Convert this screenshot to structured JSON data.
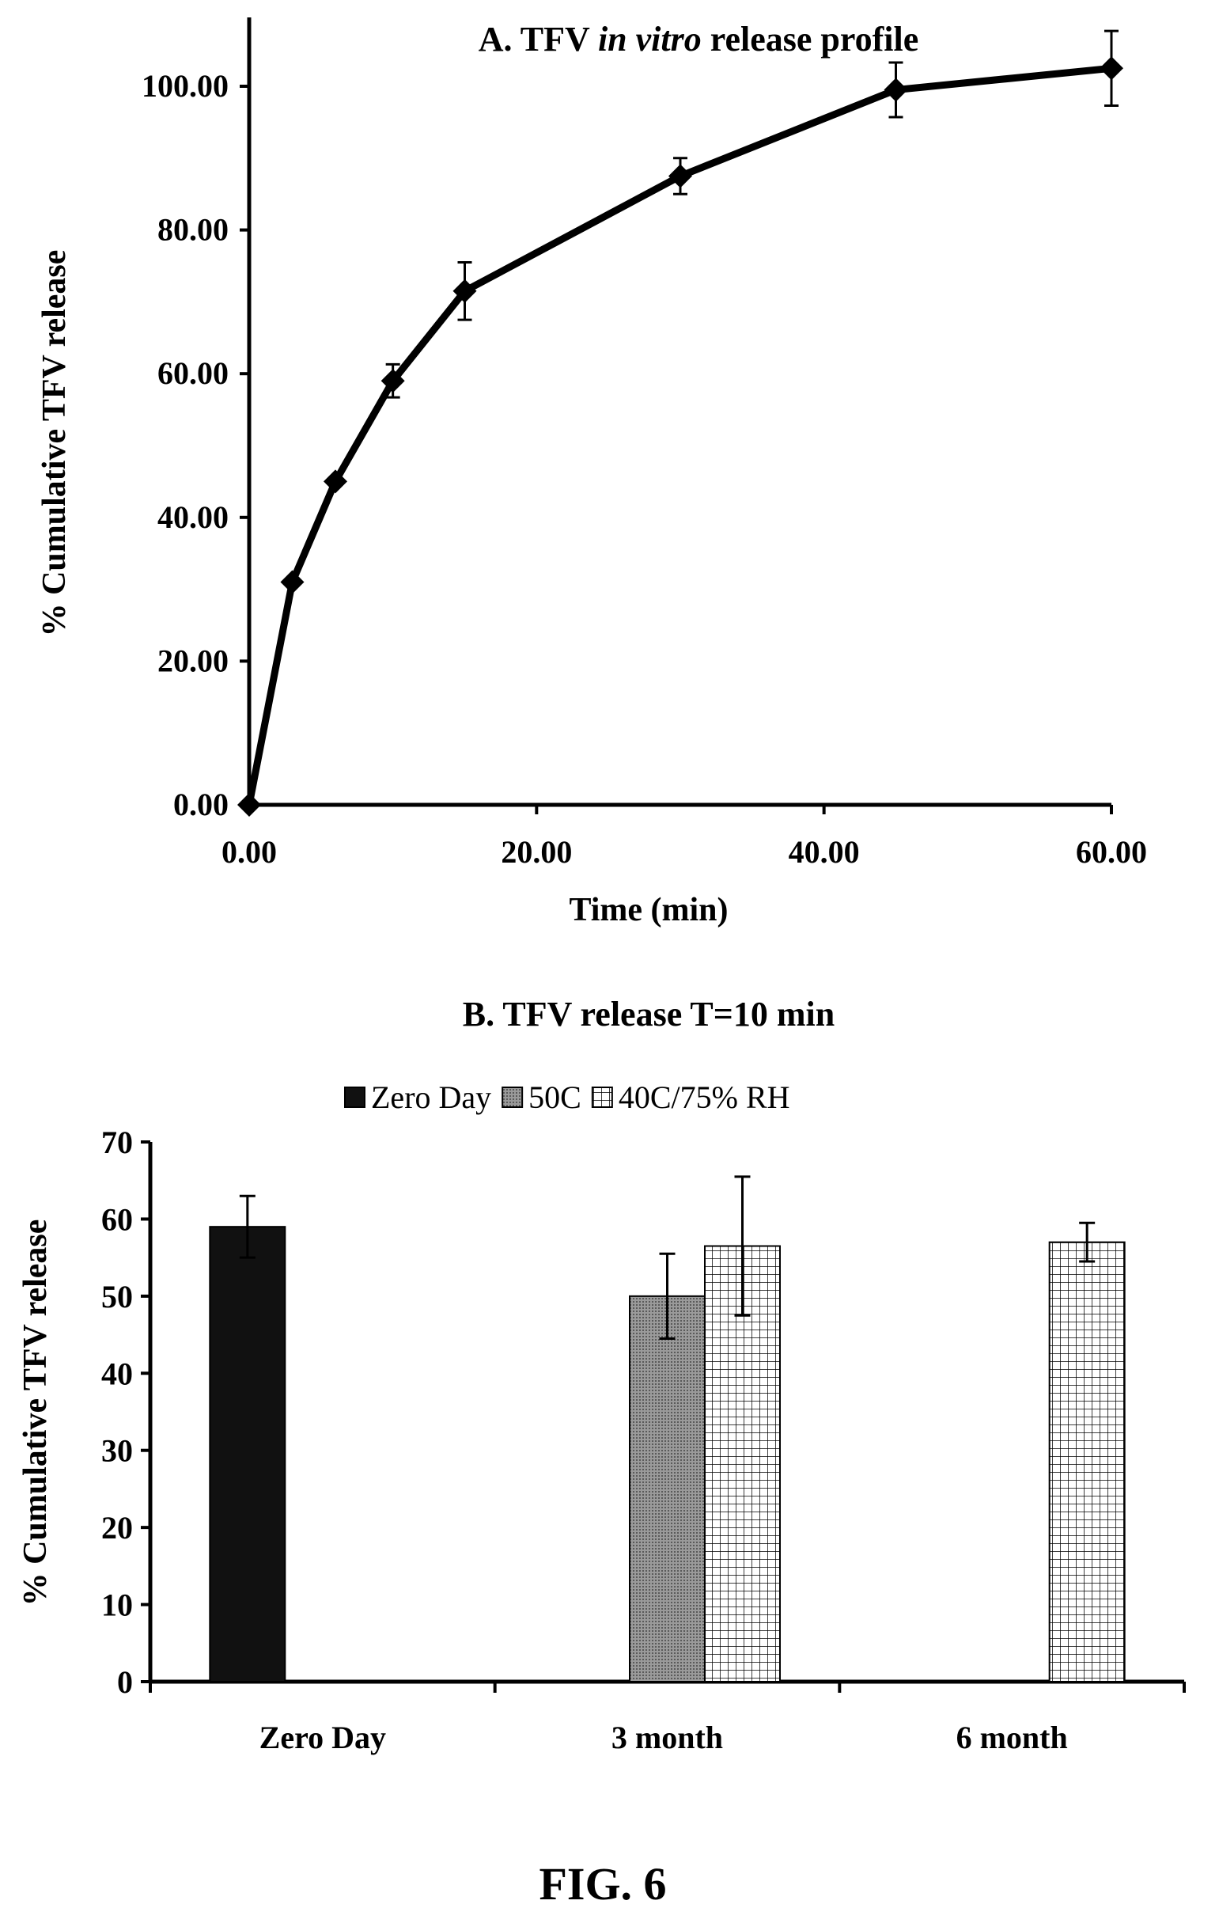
{
  "chart_data": [
    {
      "type": "line",
      "title_prefix": "A. TFV ",
      "title_italic": "in vitro",
      "title_suffix": " release profile",
      "xlabel": "Time (min)",
      "ylabel": "% Cumulative  TFV release",
      "xlim": [
        0,
        60
      ],
      "ylim": [
        0,
        100
      ],
      "x_ticks": [
        "0.00",
        "20.00",
        "40.00",
        "60.00"
      ],
      "y_ticks": [
        "0.00",
        "20.00",
        "40.00",
        "60.00",
        "80.00",
        "100.00"
      ],
      "marker": "diamond",
      "grid": false,
      "series": [
        {
          "x": [
            0,
            3,
            6,
            10,
            15,
            30,
            45,
            60
          ],
          "y": [
            0,
            31,
            45,
            59,
            71.5,
            87.5,
            99.5,
            102.5
          ],
          "error": [
            0,
            0,
            0,
            2.3,
            4,
            2.5,
            3.8,
            5.2
          ]
        }
      ]
    },
    {
      "type": "bar",
      "title": "B. TFV release T=10 min",
      "xlabel": "",
      "ylabel": "% Cumulative TFV release",
      "ylim": [
        0,
        70
      ],
      "y_ticks": [
        "0",
        "10",
        "20",
        "30",
        "40",
        "50",
        "60",
        "70"
      ],
      "categories": [
        "Zero Day",
        "3 month",
        "6 month"
      ],
      "legend_position": "top",
      "grid": false,
      "series": [
        {
          "name": "Zero Day",
          "color": "#111111",
          "pattern": "solid",
          "values": [
            59,
            null,
            null
          ],
          "errors": [
            4,
            null,
            null
          ]
        },
        {
          "name": "50C",
          "color": "#8c8c8c",
          "pattern": "dotted",
          "values": [
            null,
            50,
            null
          ],
          "errors": [
            null,
            5.5,
            null
          ]
        },
        {
          "name": "40C/75% RH",
          "color": "#ffffff",
          "pattern": "grid",
          "values": [
            null,
            56.5,
            57
          ],
          "errors": [
            null,
            9,
            2.5
          ]
        }
      ]
    }
  ],
  "figure_label": "FIG. 6"
}
